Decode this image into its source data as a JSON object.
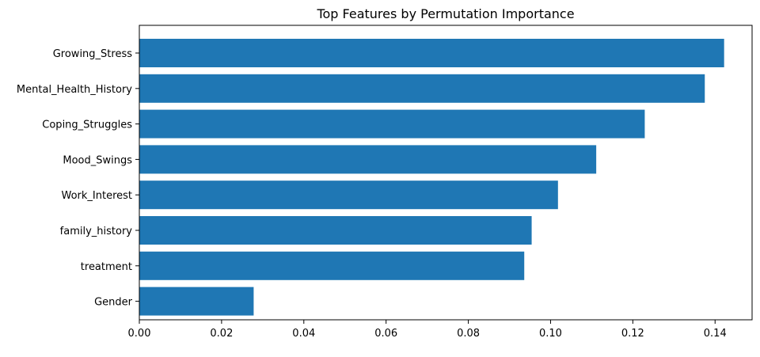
{
  "chart_data": {
    "type": "bar",
    "orientation": "horizontal",
    "title": "Top Features by Permutation Importance",
    "xlabel": "",
    "ylabel": "",
    "categories": [
      "Growing_Stress",
      "Mental_Health_History",
      "Coping_Struggles",
      "Mood_Swings",
      "Work_Interest",
      "family_history",
      "treatment",
      "Gender"
    ],
    "values": [
      0.1422,
      0.1375,
      0.1229,
      0.1111,
      0.1018,
      0.0954,
      0.0936,
      0.0278
    ],
    "xlim": [
      0,
      0.149
    ],
    "xticks": [
      0.0,
      0.02,
      0.04,
      0.06,
      0.08,
      0.1,
      0.12,
      0.14
    ],
    "xtick_labels": [
      "0.00",
      "0.02",
      "0.04",
      "0.06",
      "0.08",
      "0.10",
      "0.12",
      "0.14"
    ],
    "grid": false,
    "legend": "none",
    "bar_color": "#1f77b4"
  }
}
